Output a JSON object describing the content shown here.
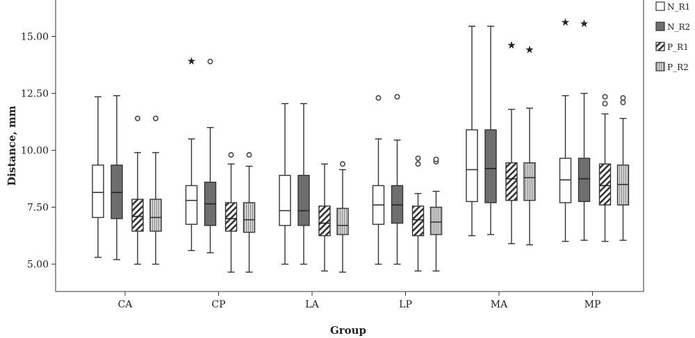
{
  "chart_data": {
    "type": "box",
    "title": "",
    "xlabel": "Group",
    "ylabel": "Distance, mm",
    "ylim": [
      3.8,
      16.6
    ],
    "yticks": [
      "5.00",
      "7.50",
      "10.00",
      "12.50",
      "15.00"
    ],
    "grid": false,
    "legend_position": "top-right",
    "categories": [
      "CA",
      "CP",
      "LA",
      "LP",
      "MA",
      "MP"
    ],
    "series": [
      {
        "name": "N_R1",
        "fill": "white",
        "boxes": [
          {
            "min": 5.3,
            "q1": 7.05,
            "median": 8.15,
            "q3": 9.35,
            "max": 12.35,
            "outliers": [],
            "extremes": []
          },
          {
            "min": 5.6,
            "q1": 6.75,
            "median": 7.8,
            "q3": 8.45,
            "max": 10.5,
            "outliers": [],
            "extremes": [
              13.95
            ]
          },
          {
            "min": 5.0,
            "q1": 6.7,
            "median": 7.35,
            "q3": 8.9,
            "max": 12.05,
            "outliers": [],
            "extremes": []
          },
          {
            "min": 5.0,
            "q1": 6.75,
            "median": 7.6,
            "q3": 8.45,
            "max": 10.5,
            "outliers": [
              12.3
            ],
            "extremes": []
          },
          {
            "min": 6.25,
            "q1": 7.75,
            "median": 9.15,
            "q3": 10.9,
            "max": 15.45,
            "outliers": [],
            "extremes": []
          },
          {
            "min": 6.0,
            "q1": 7.7,
            "median": 8.7,
            "q3": 9.65,
            "max": 12.4,
            "outliers": [],
            "extremes": [
              15.65
            ]
          }
        ]
      },
      {
        "name": "N_R2",
        "fill": "dark",
        "boxes": [
          {
            "min": 5.2,
            "q1": 7.0,
            "median": 8.15,
            "q3": 9.35,
            "max": 12.4,
            "outliers": [],
            "extremes": []
          },
          {
            "min": 5.5,
            "q1": 6.7,
            "median": 7.65,
            "q3": 8.6,
            "max": 11.0,
            "outliers": [
              13.9
            ],
            "extremes": []
          },
          {
            "min": 5.0,
            "q1": 6.7,
            "median": 7.35,
            "q3": 8.9,
            "max": 12.05,
            "outliers": [],
            "extremes": []
          },
          {
            "min": 5.0,
            "q1": 6.8,
            "median": 7.6,
            "q3": 8.45,
            "max": 10.45,
            "outliers": [
              12.35
            ],
            "extremes": []
          },
          {
            "min": 6.3,
            "q1": 7.7,
            "median": 9.2,
            "q3": 10.9,
            "max": 15.45,
            "outliers": [],
            "extremes": []
          },
          {
            "min": 6.05,
            "q1": 7.75,
            "median": 8.75,
            "q3": 9.65,
            "max": 12.5,
            "outliers": [],
            "extremes": [
              15.6
            ]
          }
        ]
      },
      {
        "name": "P_R1",
        "fill": "hatched",
        "boxes": [
          {
            "min": 5.0,
            "q1": 6.45,
            "median": 7.1,
            "q3": 7.85,
            "max": 9.9,
            "outliers": [
              11.4
            ],
            "extremes": []
          },
          {
            "min": 4.65,
            "q1": 6.45,
            "median": 7.0,
            "q3": 7.7,
            "max": 9.4,
            "outliers": [
              9.8
            ],
            "extremes": []
          },
          {
            "min": 4.7,
            "q1": 6.25,
            "median": 6.8,
            "q3": 7.55,
            "max": 9.4,
            "outliers": [],
            "extremes": []
          },
          {
            "min": 4.7,
            "q1": 6.25,
            "median": 6.95,
            "q3": 7.55,
            "max": 8.1,
            "outliers": [
              9.4,
              9.65
            ],
            "extremes": []
          },
          {
            "min": 5.9,
            "q1": 7.8,
            "median": 8.75,
            "q3": 9.45,
            "max": 11.8,
            "outliers": [],
            "extremes": [
              14.65
            ]
          },
          {
            "min": 6.0,
            "q1": 7.6,
            "median": 8.45,
            "q3": 9.4,
            "max": 11.6,
            "outliers": [
              12.05,
              12.35
            ],
            "extremes": []
          }
        ]
      },
      {
        "name": "P_R2",
        "fill": "lined",
        "boxes": [
          {
            "min": 5.0,
            "q1": 6.45,
            "median": 7.05,
            "q3": 7.85,
            "max": 9.9,
            "outliers": [
              11.4
            ],
            "extremes": []
          },
          {
            "min": 4.65,
            "q1": 6.4,
            "median": 6.95,
            "q3": 7.7,
            "max": 9.3,
            "outliers": [
              9.8
            ],
            "extremes": []
          },
          {
            "min": 4.65,
            "q1": 6.3,
            "median": 6.7,
            "q3": 7.45,
            "max": 9.15,
            "outliers": [
              9.4
            ],
            "extremes": []
          },
          {
            "min": 4.7,
            "q1": 6.3,
            "median": 6.85,
            "q3": 7.5,
            "max": 8.2,
            "outliers": [
              9.5,
              9.6
            ],
            "extremes": []
          },
          {
            "min": 5.85,
            "q1": 7.8,
            "median": 8.8,
            "q3": 9.45,
            "max": 11.85,
            "outliers": [],
            "extremes": [
              14.45
            ]
          },
          {
            "min": 6.05,
            "q1": 7.6,
            "median": 8.5,
            "q3": 9.35,
            "max": 11.4,
            "outliers": [
              12.1,
              12.3
            ],
            "extremes": []
          }
        ]
      }
    ]
  }
}
